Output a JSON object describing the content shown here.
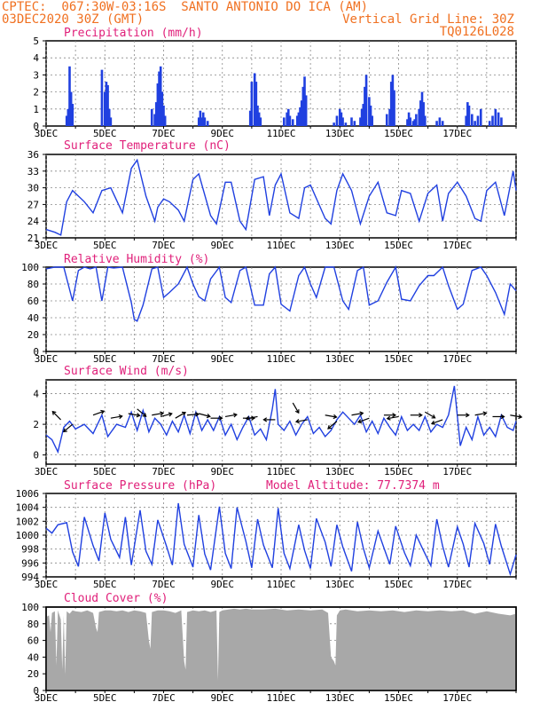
{
  "header": {
    "line1": "CPTEC:  067:30W-03:16S  SANTO ANTONIO DO ICA (AM)",
    "line2_left": "03DEC2020 30Z (GMT)",
    "line2_right": "Vertical Grid Line: 30Z",
    "line3_right": "TQ0126L028"
  },
  "colors": {
    "header": "#f07020",
    "title": "#e0207a",
    "line": "#2040e0",
    "cloud": "#a8a8a8"
  },
  "x_day_labels": [
    "3DEC",
    "5DEC",
    "7DEC",
    "9DEC",
    "11DEC",
    "13DEC",
    "15DEC",
    "17DEC"
  ],
  "chart_data": [
    {
      "type": "bar",
      "title": "Precipitation (mm/h)",
      "ylim": [
        0,
        5
      ],
      "yticks": [
        "0",
        "1",
        "2",
        "3",
        "4",
        "5"
      ],
      "x_days": [
        3,
        19
      ],
      "x": [
        3.7,
        3.75,
        3.8,
        3.85,
        3.9,
        4.9,
        5.0,
        5.05,
        5.1,
        5.15,
        5.2,
        6.6,
        6.7,
        6.75,
        6.8,
        6.85,
        6.9,
        6.95,
        7.0,
        7.05,
        8.2,
        8.25,
        8.3,
        8.35,
        8.4,
        8.5,
        9.95,
        10.0,
        10.1,
        10.15,
        10.2,
        10.25,
        10.3,
        11.1,
        11.2,
        11.25,
        11.3,
        11.4,
        11.55,
        11.6,
        11.65,
        11.7,
        11.75,
        11.8,
        11.85,
        12.8,
        12.9,
        13.0,
        13.05,
        13.1,
        13.2,
        13.4,
        13.5,
        13.7,
        13.75,
        13.8,
        13.85,
        13.9,
        14.0,
        14.05,
        14.1,
        14.6,
        14.7,
        14.75,
        14.8,
        14.85,
        15.3,
        15.35,
        15.4,
        15.5,
        15.55,
        15.6,
        15.7,
        15.75,
        15.8,
        15.85,
        15.9,
        16.3,
        16.4,
        16.5,
        17.3,
        17.35,
        17.4,
        17.5,
        17.6,
        17.7,
        17.8,
        18.1,
        18.2,
        18.3,
        18.4,
        18.5
      ],
      "values": [
        0.6,
        1.0,
        3.5,
        2.0,
        1.3,
        3.3,
        2.0,
        2.6,
        2.4,
        1.0,
        0.5,
        1.0,
        0.7,
        1.4,
        2.5,
        3.2,
        3.5,
        2.0,
        1.2,
        0.6,
        0.5,
        0.9,
        0.5,
        0.8,
        0.5,
        0.3,
        0.9,
        2.6,
        3.1,
        2.6,
        1.2,
        0.8,
        0.5,
        0.5,
        0.8,
        1.0,
        0.6,
        0.4,
        0.6,
        0.8,
        1.1,
        1.5,
        2.3,
        2.9,
        1.8,
        0.2,
        0.6,
        1.0,
        0.8,
        0.5,
        0.2,
        0.5,
        0.3,
        0.5,
        1.0,
        1.3,
        2.3,
        3.0,
        1.7,
        1.2,
        0.6,
        0.7,
        1.0,
        2.6,
        3.0,
        2.1,
        0.4,
        0.8,
        0.5,
        0.3,
        0.4,
        0.7,
        1.0,
        1.5,
        2.0,
        1.4,
        0.6,
        0.3,
        0.5,
        0.3,
        0.6,
        1.4,
        1.2,
        0.7,
        0.3,
        0.6,
        1.0,
        0.3,
        0.6,
        1.0,
        0.8,
        0.5
      ]
    },
    {
      "type": "line",
      "title": "Surface Temperature (nC)",
      "ylim": [
        21,
        36
      ],
      "yticks": [
        "21",
        "24",
        "27",
        "30",
        "33",
        "36"
      ],
      "x_days": [
        3,
        19
      ],
      "x": [
        3.0,
        3.3,
        3.5,
        3.7,
        3.9,
        4.3,
        4.6,
        4.9,
        5.2,
        5.6,
        5.9,
        6.1,
        6.4,
        6.7,
        6.8,
        7.0,
        7.2,
        7.5,
        7.7,
        8.0,
        8.2,
        8.6,
        8.8,
        9.1,
        9.3,
        9.6,
        9.8,
        10.1,
        10.4,
        10.6,
        10.8,
        11.0,
        11.3,
        11.6,
        11.8,
        12.0,
        12.5,
        12.7,
        12.9,
        13.1,
        13.4,
        13.7,
        14.0,
        14.3,
        14.6,
        14.9,
        15.1,
        15.4,
        15.7,
        16.0,
        16.3,
        16.5,
        16.7,
        17.0,
        17.3,
        17.6,
        17.8,
        18.0,
        18.3,
        18.6,
        18.9,
        19.0
      ],
      "values": [
        22.5,
        22.0,
        21.5,
        27.5,
        29.5,
        27.5,
        25.5,
        29.5,
        30.0,
        25.5,
        33.5,
        35.0,
        28.5,
        24.0,
        26.5,
        28.0,
        27.5,
        26.0,
        24.0,
        31.5,
        32.5,
        25.0,
        23.5,
        31.0,
        31.0,
        24.0,
        22.5,
        31.5,
        32.0,
        25.0,
        30.5,
        32.5,
        25.5,
        24.5,
        30.0,
        30.5,
        24.5,
        23.5,
        29.5,
        32.5,
        29.5,
        23.5,
        28.5,
        31.0,
        25.5,
        25.0,
        29.5,
        29.0,
        24.0,
        29.0,
        30.5,
        24.0,
        29.0,
        31.0,
        28.5,
        24.5,
        24.0,
        29.5,
        31.0,
        25.0,
        33.0,
        29.5
      ]
    },
    {
      "type": "line",
      "title": "Relative Humidity (%)",
      "ylim": [
        0,
        100
      ],
      "yticks": [
        "0",
        "20",
        "40",
        "60",
        "80",
        "100"
      ],
      "x_days": [
        3,
        19
      ],
      "x": [
        3.0,
        3.3,
        3.6,
        3.9,
        4.1,
        4.3,
        4.5,
        4.7,
        4.9,
        5.1,
        5.3,
        5.6,
        5.9,
        6.0,
        6.1,
        6.3,
        6.6,
        6.8,
        7.0,
        7.2,
        7.5,
        7.8,
        8.0,
        8.2,
        8.4,
        8.6,
        8.9,
        9.1,
        9.3,
        9.6,
        9.8,
        10.1,
        10.4,
        10.6,
        10.8,
        11.0,
        11.3,
        11.6,
        11.8,
        12.0,
        12.2,
        12.5,
        12.8,
        13.1,
        13.3,
        13.6,
        13.8,
        14.0,
        14.3,
        14.6,
        14.9,
        15.1,
        15.4,
        15.7,
        16.0,
        16.2,
        16.5,
        16.7,
        17.0,
        17.2,
        17.5,
        17.8,
        18.0,
        18.3,
        18.6,
        18.8,
        19.0
      ],
      "values": [
        98,
        100,
        100,
        60,
        96,
        100,
        98,
        100,
        60,
        100,
        99,
        100,
        58,
        38,
        36,
        55,
        98,
        100,
        64,
        70,
        80,
        100,
        80,
        65,
        60,
        86,
        100,
        64,
        58,
        96,
        100,
        55,
        55,
        92,
        100,
        56,
        48,
        90,
        100,
        80,
        64,
        100,
        100,
        60,
        50,
        96,
        100,
        55,
        60,
        82,
        100,
        62,
        60,
        78,
        90,
        90,
        100,
        78,
        50,
        56,
        96,
        100,
        90,
        70,
        44,
        80,
        72
      ]
    },
    {
      "type": "line",
      "title": "Surface Wind (m/s)",
      "ylim": [
        -0.6,
        4.9
      ],
      "yticks": [
        "0",
        "2",
        "4"
      ],
      "x_days": [
        3,
        19
      ],
      "x": [
        3.0,
        3.2,
        3.4,
        3.6,
        3.8,
        4.0,
        4.3,
        4.6,
        4.9,
        5.1,
        5.4,
        5.7,
        5.9,
        6.1,
        6.3,
        6.5,
        6.7,
        6.9,
        7.1,
        7.3,
        7.5,
        7.7,
        7.9,
        8.1,
        8.3,
        8.5,
        8.7,
        8.9,
        9.1,
        9.3,
        9.5,
        9.7,
        9.9,
        10.1,
        10.3,
        10.5,
        10.7,
        10.8,
        10.9,
        11.1,
        11.3,
        11.5,
        11.7,
        11.9,
        12.1,
        12.3,
        12.5,
        12.7,
        12.9,
        13.1,
        13.3,
        13.5,
        13.7,
        13.9,
        14.1,
        14.3,
        14.5,
        14.7,
        14.9,
        15.1,
        15.3,
        15.5,
        15.7,
        15.9,
        16.1,
        16.3,
        16.5,
        16.7,
        16.9,
        17.1,
        17.3,
        17.5,
        17.7,
        17.9,
        18.1,
        18.3,
        18.5,
        18.7,
        18.9,
        19.0
      ],
      "values": [
        1.3,
        1.0,
        0.2,
        1.8,
        2.2,
        1.7,
        2.0,
        1.4,
        2.6,
        1.2,
        2.0,
        1.8,
        2.8,
        1.6,
        2.9,
        1.5,
        2.4,
        2.0,
        1.3,
        2.2,
        1.5,
        2.6,
        1.4,
        2.8,
        1.6,
        2.3,
        1.6,
        2.5,
        1.3,
        2.0,
        1.0,
        1.8,
        2.5,
        1.3,
        1.7,
        1.0,
        3.0,
        4.3,
        2.0,
        1.6,
        2.2,
        1.3,
        2.0,
        2.5,
        1.4,
        1.8,
        1.2,
        1.6,
        2.3,
        2.8,
        2.4,
        2.0,
        2.6,
        1.5,
        2.2,
        1.4,
        2.4,
        1.8,
        1.3,
        2.5,
        1.6,
        2.0,
        1.6,
        2.5,
        1.5,
        2.0,
        1.8,
        2.6,
        4.5,
        0.6,
        1.8,
        1.0,
        2.5,
        1.3,
        1.8,
        1.2,
        2.6,
        1.8,
        1.6,
        2.2
      ]
    },
    {
      "type": "line",
      "title": "Surface Pressure (hPa)",
      "annotation": "Model Altitude: 77.7374 m",
      "ylim": [
        994,
        1006
      ],
      "yticks": [
        "994",
        "996",
        "998",
        "1000",
        "1002",
        "1004",
        "1006"
      ],
      "x_days": [
        3,
        19
      ],
      "x": [
        3.0,
        3.2,
        3.4,
        3.7,
        3.9,
        4.1,
        4.3,
        4.6,
        4.8,
        5.0,
        5.2,
        5.5,
        5.7,
        5.9,
        6.2,
        6.4,
        6.6,
        6.8,
        7.1,
        7.3,
        7.5,
        7.7,
        8.0,
        8.2,
        8.4,
        8.6,
        8.9,
        9.1,
        9.3,
        9.5,
        9.8,
        10.0,
        10.2,
        10.4,
        10.7,
        10.9,
        11.1,
        11.3,
        11.6,
        11.8,
        12.0,
        12.2,
        12.5,
        12.7,
        12.9,
        13.1,
        13.4,
        13.6,
        13.8,
        14.0,
        14.3,
        14.5,
        14.7,
        14.9,
        15.2,
        15.4,
        15.6,
        15.8,
        16.1,
        16.3,
        16.5,
        16.7,
        17.0,
        17.2,
        17.4,
        17.6,
        17.9,
        18.1,
        18.3,
        18.5,
        18.8,
        19.0
      ],
      "values": [
        1001.0,
        1000.3,
        1001.5,
        1001.8,
        997.6,
        995.5,
        1002.6,
        998.5,
        996.3,
        1003.2,
        999.4,
        996.8,
        1002.6,
        995.7,
        1003.6,
        997.7,
        995.8,
        1002.2,
        998.4,
        995.7,
        1004.6,
        998.7,
        995.4,
        1002.9,
        997.3,
        995.0,
        1004.1,
        997.4,
        995.2,
        1004.0,
        999.1,
        995.3,
        1002.3,
        998.6,
        995.3,
        1003.9,
        997.4,
        995.2,
        1001.5,
        997.8,
        995.2,
        1002.4,
        999.0,
        995.5,
        1001.5,
        998.3,
        994.8,
        1001.9,
        998.1,
        995.3,
        1000.6,
        998.2,
        995.8,
        1001.3,
        997.5,
        995.6,
        1000.0,
        998.2,
        995.6,
        1002.3,
        998.4,
        995.4,
        1001.2,
        998.7,
        995.4,
        1001.7,
        998.8,
        995.8,
        1001.6,
        998.4,
        994.4,
        997.2
      ]
    },
    {
      "type": "area",
      "title": "Cloud Cover (%)",
      "ylim": [
        0,
        100
      ],
      "yticks": [
        "0",
        "20",
        "40",
        "60",
        "80",
        "100"
      ],
      "x_days": [
        3,
        19
      ],
      "x": [
        3.0,
        3.1,
        3.15,
        3.2,
        3.3,
        3.35,
        3.4,
        3.5,
        3.55,
        3.6,
        3.65,
        3.7,
        3.8,
        3.9,
        4.0,
        4.2,
        4.4,
        4.6,
        4.7,
        4.75,
        4.8,
        5.0,
        5.2,
        5.4,
        5.6,
        5.8,
        6.0,
        6.2,
        6.4,
        6.5,
        6.55,
        6.6,
        6.8,
        7.0,
        7.2,
        7.4,
        7.6,
        7.7,
        7.75,
        7.8,
        8.0,
        8.2,
        8.4,
        8.6,
        8.8,
        8.85,
        8.9,
        9.0,
        9.2,
        9.4,
        9.6,
        9.8,
        10.0,
        10.4,
        10.8,
        11.2,
        11.6,
        12.0,
        12.4,
        12.6,
        12.7,
        12.8,
        12.85,
        12.9,
        13.0,
        13.2,
        13.6,
        14.0,
        14.4,
        14.8,
        15.2,
        15.6,
        16.0,
        16.4,
        16.8,
        17.2,
        17.6,
        18.0,
        18.4,
        18.8,
        19.0
      ],
      "values": [
        88,
        90,
        70,
        93,
        95,
        30,
        96,
        85,
        25,
        90,
        18,
        95,
        92,
        96,
        95,
        94,
        96,
        93,
        75,
        70,
        94,
        96,
        96,
        95,
        96,
        94,
        96,
        95,
        93,
        60,
        50,
        94,
        96,
        96,
        95,
        93,
        96,
        35,
        25,
        94,
        96,
        95,
        96,
        94,
        96,
        12,
        94,
        96,
        97,
        98,
        97,
        98,
        97,
        97,
        98,
        96,
        97,
        96,
        97,
        93,
        40,
        35,
        30,
        90,
        96,
        97,
        95,
        96,
        95,
        96,
        94,
        96,
        95,
        96,
        95,
        96,
        92,
        95,
        92,
        90,
        92
      ]
    }
  ],
  "wind_vectors": {
    "x": [
      3.5,
      3.9,
      4.6,
      5.2,
      5.8,
      6.1,
      6.6,
      6.9,
      7.4,
      7.8,
      8.2,
      8.6,
      9.1,
      9.7,
      10.2,
      10.8,
      11.4,
      11.9,
      12.5,
      12.9,
      13.4,
      14.0,
      14.5,
      15.0,
      15.4,
      15.9,
      16.5,
      17.0,
      17.6,
      18.2,
      18.8
    ],
    "y": [
      2.3,
      2.0,
      2.6,
      2.4,
      2.7,
      3.0,
      2.6,
      2.5,
      2.4,
      2.6,
      2.7,
      2.4,
      2.5,
      2.4,
      2.5,
      2.3,
      3.4,
      2.3,
      2.6,
      2.2,
      2.6,
      2.4,
      2.6,
      2.5,
      2.6,
      2.8,
      2.3,
      2.6,
      2.6,
      2.5,
      2.6
    ],
    "dir_deg": [
      135,
      220,
      20,
      10,
      -10,
      -40,
      10,
      15,
      30,
      5,
      -15,
      0,
      10,
      0,
      190,
      180,
      -60,
      190,
      -10,
      220,
      10,
      200,
      0,
      190,
      0,
      -30,
      200,
      0,
      10,
      0,
      -10
    ]
  }
}
